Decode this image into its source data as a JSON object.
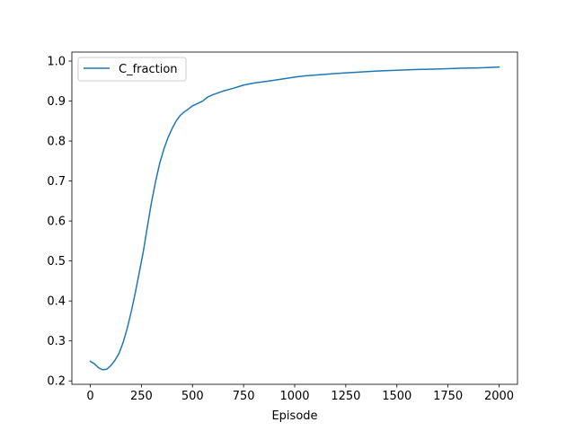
{
  "chart_data": {
    "type": "line",
    "title": "",
    "xlabel": "Episode",
    "ylabel": "",
    "xlim": [
      -90,
      2090
    ],
    "ylim": [
      0.1915,
      1.0225
    ],
    "xticks": [
      0,
      250,
      500,
      750,
      1000,
      1250,
      1500,
      1750,
      2000
    ],
    "yticks": [
      0.2,
      0.3,
      0.4,
      0.5,
      0.6,
      0.7,
      0.8,
      0.9,
      1.0
    ],
    "xtick_labels": [
      "0",
      "250",
      "500",
      "750",
      "1000",
      "1250",
      "1500",
      "1750",
      "2000"
    ],
    "ytick_labels": [
      "0.2",
      "0.3",
      "0.4",
      "0.5",
      "0.6",
      "0.7",
      "0.8",
      "0.9",
      "1.0"
    ],
    "grid": false,
    "legend_position": "top-left",
    "series": [
      {
        "name": "C_fraction",
        "color": "#1f77b4",
        "x": [
          0,
          20,
          40,
          60,
          80,
          100,
          120,
          140,
          160,
          180,
          200,
          220,
          240,
          260,
          280,
          300,
          320,
          340,
          360,
          380,
          400,
          420,
          440,
          460,
          480,
          500,
          550,
          575,
          600,
          650,
          700,
          750,
          800,
          900,
          950,
          1000,
          1050,
          1100,
          1200,
          1300,
          1400,
          1500,
          1600,
          1700,
          1800,
          1900,
          2000
        ],
        "y": [
          0.249,
          0.243,
          0.233,
          0.228,
          0.229,
          0.238,
          0.251,
          0.268,
          0.295,
          0.33,
          0.372,
          0.42,
          0.472,
          0.525,
          0.588,
          0.648,
          0.7,
          0.745,
          0.78,
          0.808,
          0.831,
          0.85,
          0.864,
          0.873,
          0.88,
          0.888,
          0.9,
          0.91,
          0.916,
          0.925,
          0.932,
          0.94,
          0.945,
          0.952,
          0.956,
          0.96,
          0.963,
          0.965,
          0.969,
          0.972,
          0.975,
          0.977,
          0.979,
          0.98,
          0.982,
          0.983,
          0.985
        ]
      }
    ]
  }
}
